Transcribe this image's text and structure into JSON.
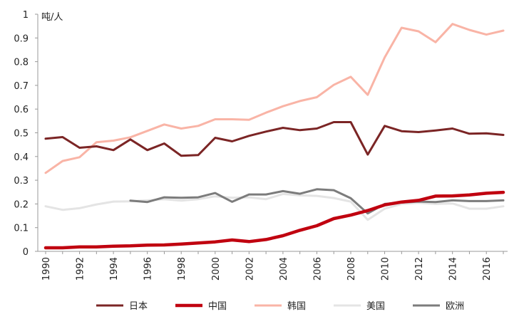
{
  "chart_data": {
    "type": "line",
    "title": "",
    "xlabel": "",
    "ylabel": "",
    "unit_label": "吨/人",
    "ylim": [
      0,
      1
    ],
    "yticks": [
      "0",
      "0.1",
      "0.2",
      "0.3",
      "0.4",
      "0.5",
      "0.6",
      "0.7",
      "0.8",
      "0.9",
      "1"
    ],
    "xlim": [
      1990,
      2017
    ],
    "xticks": [
      "1990",
      "1992",
      "1994",
      "1996",
      "1998",
      "2000",
      "2002",
      "2004",
      "2006",
      "2008",
      "2010",
      "2012",
      "2014",
      "2016"
    ],
    "grid": false,
    "legend_position": "bottom",
    "series": [
      {
        "name": "日本",
        "color": "#7b2525",
        "x": [
          1990,
          1991,
          1992,
          1993,
          1994,
          1995,
          1996,
          1997,
          1998,
          1999,
          2000,
          2001,
          2002,
          2003,
          2004,
          2005,
          2006,
          2007,
          2008,
          2009,
          2010,
          2011,
          2012,
          2013,
          2014,
          2015,
          2016,
          2017
        ],
        "values": [
          0.475,
          0.482,
          0.437,
          0.443,
          0.427,
          0.472,
          0.427,
          0.455,
          0.403,
          0.406,
          0.479,
          0.464,
          0.487,
          0.505,
          0.521,
          0.511,
          0.518,
          0.545,
          0.545,
          0.408,
          0.529,
          0.507,
          0.503,
          0.51,
          0.518,
          0.496,
          0.498,
          0.491
        ]
      },
      {
        "name": "中国",
        "color": "#c0000f",
        "x": [
          1990,
          1991,
          1992,
          1993,
          1994,
          1995,
          1996,
          1997,
          1998,
          1999,
          2000,
          2001,
          2002,
          2003,
          2004,
          2005,
          2006,
          2007,
          2008,
          2009,
          2010,
          2011,
          2012,
          2013,
          2014,
          2015,
          2016,
          2017
        ],
        "values": [
          0.015,
          0.015,
          0.019,
          0.019,
          0.022,
          0.023,
          0.026,
          0.027,
          0.031,
          0.035,
          0.04,
          0.048,
          0.041,
          0.05,
          0.066,
          0.089,
          0.108,
          0.138,
          0.153,
          0.172,
          0.196,
          0.208,
          0.215,
          0.233,
          0.234,
          0.238,
          0.245,
          0.249
        ]
      },
      {
        "name": "韩国",
        "color": "#f9b4a6",
        "x": [
          1990,
          1991,
          1992,
          1993,
          1994,
          1995,
          1996,
          1997,
          1998,
          1999,
          2000,
          2001,
          2002,
          2003,
          2004,
          2005,
          2006,
          2007,
          2008,
          2009,
          2010,
          2011,
          2012,
          2013,
          2014,
          2015,
          2016,
          2017
        ],
        "values": [
          0.331,
          0.381,
          0.397,
          0.46,
          0.467,
          0.481,
          0.508,
          0.535,
          0.518,
          0.529,
          0.557,
          0.557,
          0.555,
          0.585,
          0.612,
          0.634,
          0.65,
          0.702,
          0.736,
          0.66,
          0.818,
          0.943,
          0.928,
          0.882,
          0.959,
          0.934,
          0.914,
          0.931
        ]
      },
      {
        "name": "美国",
        "color": "#e4e4e4",
        "x": [
          1990,
          1991,
          1992,
          1993,
          1994,
          1995,
          1996,
          1997,
          1998,
          1999,
          2000,
          2001,
          2002,
          2003,
          2004,
          2005,
          2006,
          2007,
          2008,
          2009,
          2010,
          2011,
          2012,
          2013,
          2014,
          2015,
          2016,
          2017
        ],
        "values": [
          0.19,
          0.175,
          0.182,
          0.198,
          0.21,
          0.211,
          0.215,
          0.22,
          0.214,
          0.22,
          0.232,
          0.226,
          0.228,
          0.22,
          0.242,
          0.236,
          0.234,
          0.225,
          0.21,
          0.133,
          0.18,
          0.2,
          0.205,
          0.2,
          0.202,
          0.18,
          0.18,
          0.19
        ]
      },
      {
        "name": "欧洲",
        "color": "#7c7c7c",
        "x": [
          1995,
          1996,
          1997,
          1998,
          1999,
          2000,
          2001,
          2002,
          2003,
          2004,
          2005,
          2006,
          2007,
          2008,
          2009,
          2010,
          2011,
          2012,
          2013,
          2014,
          2015,
          2016,
          2017
        ],
        "values": [
          0.214,
          0.208,
          0.228,
          0.226,
          0.228,
          0.246,
          0.209,
          0.24,
          0.24,
          0.254,
          0.243,
          0.262,
          0.258,
          0.224,
          0.16,
          0.2,
          0.206,
          0.21,
          0.208,
          0.215,
          0.212,
          0.212,
          0.215
        ]
      }
    ]
  }
}
